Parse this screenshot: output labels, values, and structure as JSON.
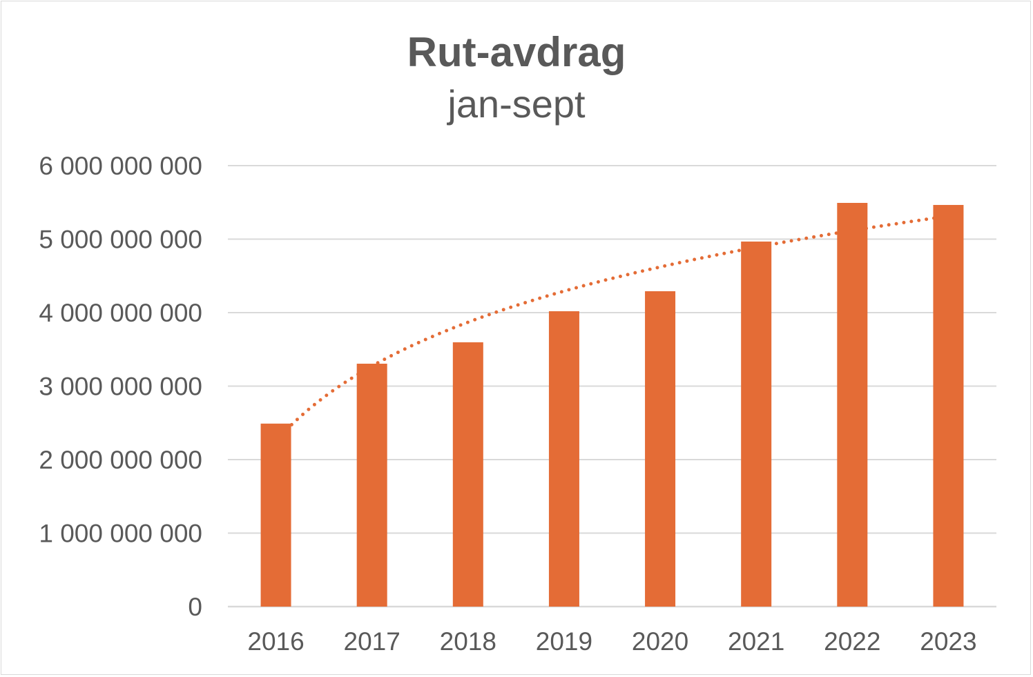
{
  "chart_data": {
    "type": "bar",
    "title": "Rut-avdrag",
    "subtitle": "jan-sept",
    "xlabel": "",
    "ylabel": "",
    "categories": [
      "2016",
      "2017",
      "2018",
      "2019",
      "2020",
      "2021",
      "2022",
      "2023"
    ],
    "values": [
      2490000000,
      3305000000,
      3596000000,
      4019000000,
      4291000000,
      4967000000,
      5493000000,
      5465000000
    ],
    "ylim": [
      0,
      6000000000
    ],
    "yticks": [
      0,
      1000000000,
      2000000000,
      3000000000,
      4000000000,
      5000000000,
      6000000000
    ],
    "ytick_labels": [
      "0",
      "1 000 000 000",
      "2 000 000 000",
      "3 000 000 000",
      "4 000 000 000",
      "5 000 000 000",
      "6 000 000 000"
    ],
    "grid": true,
    "legend": "none",
    "trendline": {
      "type": "logarithmic",
      "style": "dotted"
    },
    "colors": {
      "bar": "#E46C36",
      "trendline": "#E46C36",
      "grid": "#d9d9d9",
      "text": "#595959"
    }
  }
}
